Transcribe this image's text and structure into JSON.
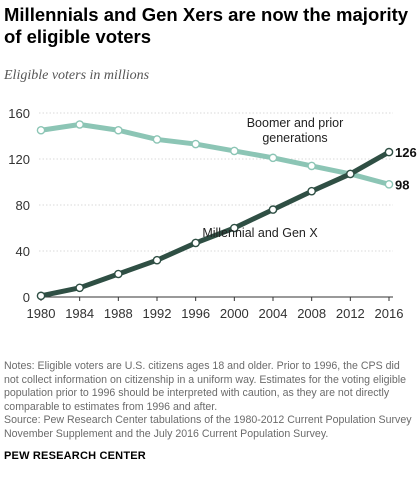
{
  "title": "Millennials and Gen Xers are now the majority of eligible voters",
  "subtitle": "Eligible voters in millions",
  "chart_data": {
    "type": "line",
    "x": [
      1980,
      1984,
      1988,
      1992,
      1996,
      2000,
      2004,
      2008,
      2012,
      2016
    ],
    "xticks": [
      "1980",
      "1984",
      "1988",
      "1992",
      "1996",
      "2000",
      "2004",
      "2008",
      "2012",
      "2016"
    ],
    "yticks": [
      "0",
      "40",
      "80",
      "120",
      "160"
    ],
    "ylim": [
      0,
      160
    ],
    "xlim": [
      1980,
      2016
    ],
    "grid": true,
    "series": [
      {
        "name": "Boomer and prior generations",
        "label_lines": [
          "Boomer and prior",
          "generations"
        ],
        "values": [
          145,
          150,
          145,
          137,
          133,
          127,
          121,
          114,
          107,
          98
        ],
        "end_label": "98",
        "color": "#8cc5b5"
      },
      {
        "name": "Millennial and Gen X",
        "label_lines": [
          "Millennial and Gen X"
        ],
        "values": [
          1,
          8,
          20,
          32,
          47,
          60,
          76,
          92,
          107,
          126
        ],
        "end_label": "126",
        "color": "#2f4f44"
      }
    ]
  },
  "notes": {
    "line1": "Notes: Eligible voters are U.S. citizens ages 18 and older. Prior to 1996, the CPS did not collect information on citizenship in a uniform way. Estimates for the voting eligible population prior to 1996 should be interpreted with caution, as they are not directly comparable to estimates from 1996 and after.",
    "line2": "Source: Pew Research Center tabulations of the 1980-2012 Current Population Survey November Supplement and the July 2016 Current Population Survey."
  },
  "brand": "PEW RESEARCH CENTER"
}
